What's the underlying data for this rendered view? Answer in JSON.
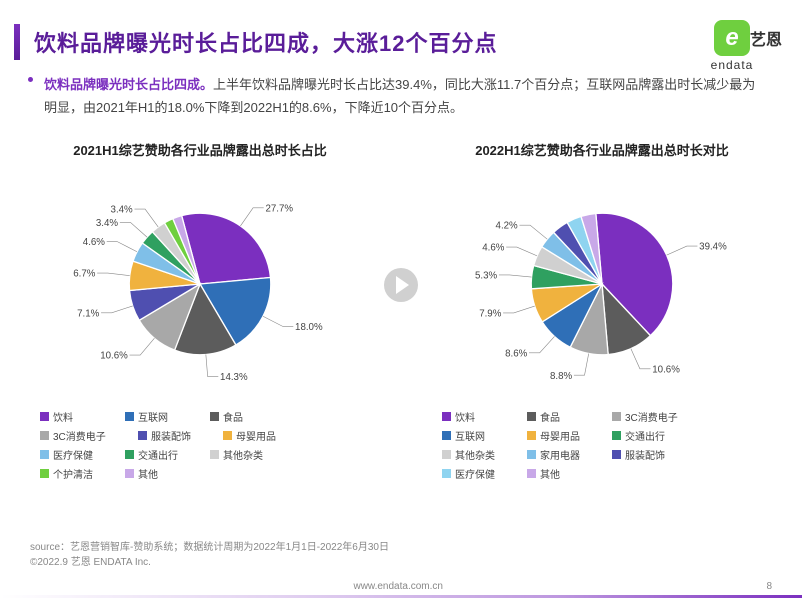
{
  "title": "饮料品牌曝光时长占比四成，大涨12个百分点",
  "title_color": "#5a1d99",
  "accent_color": "#7b2fbf",
  "logo": {
    "cn": "艺恩",
    "en": "endata",
    "bg": "#6fcf3f"
  },
  "subtitle_head": "饮料品牌曝光时长占比四成。",
  "subtitle_body": "上半年饮料品牌曝光时长占比达39.4%，同比大涨11.7个百分点；互联网品牌露出时长减少最为明显，由2021年H1的18.0%下降到2022H1的8.6%，下降近10个百分点。",
  "chart_left": {
    "title": "2021H1综艺赞助各行业品牌露出总时长占比",
    "type": "pie",
    "background_color": "#ffffff",
    "label_fontsize": 11,
    "start_angle_deg": -15,
    "slices": [
      {
        "name": "饮料",
        "value": 27.7,
        "color": "#7b2fbf",
        "label": "27.7%"
      },
      {
        "name": "互联网",
        "value": 18.0,
        "color": "#2f6fb7",
        "label": "18.0%"
      },
      {
        "name": "食品",
        "value": 14.3,
        "color": "#5c5c5c",
        "label": "14.3%"
      },
      {
        "name": "3C消费电子",
        "value": 10.6,
        "color": "#a8a8a8",
        "label": "10.6%"
      },
      {
        "name": "服装配饰",
        "value": 7.1,
        "color": "#4f4fb0",
        "label": "7.1%"
      },
      {
        "name": "母婴用品",
        "value": 6.7,
        "color": "#f0b23e",
        "label": "6.7%"
      },
      {
        "name": "医疗保健",
        "value": 4.6,
        "color": "#7fbfe8",
        "label": "4.6%"
      },
      {
        "name": "交通出行",
        "value": 3.4,
        "color": "#2fa060",
        "label": "3.4%"
      },
      {
        "name": "其他杂类",
        "value": 3.4,
        "color": "#d0d0d0",
        "label": "3.4%"
      },
      {
        "name": "个护清洁",
        "value": 2.1,
        "color": "#6fcf3f",
        "label": ""
      },
      {
        "name": "其他",
        "value": 2.1,
        "color": "#c8a8e8",
        "label": ""
      }
    ],
    "legend": [
      "饮料",
      "互联网",
      "食品",
      "3C消费电子",
      "服装配饰",
      "母婴用品",
      "医疗保健",
      "交通出行",
      "其他杂类",
      "个护清洁",
      "其他"
    ],
    "legend_colors": [
      "#7b2fbf",
      "#2f6fb7",
      "#5c5c5c",
      "#a8a8a8",
      "#4f4fb0",
      "#f0b23e",
      "#7fbfe8",
      "#2fa060",
      "#d0d0d0",
      "#6fcf3f",
      "#c8a8e8"
    ]
  },
  "chart_right": {
    "title": "2022H1综艺赞助各行业品牌露出总时长对比",
    "type": "pie",
    "background_color": "#ffffff",
    "label_fontsize": 11,
    "start_angle_deg": -5,
    "slices": [
      {
        "name": "饮料",
        "value": 39.4,
        "color": "#7b2fbf",
        "label": "39.4%"
      },
      {
        "name": "食品",
        "value": 10.6,
        "color": "#5c5c5c",
        "label": "10.6%"
      },
      {
        "name": "3C消费电子",
        "value": 8.8,
        "color": "#a8a8a8",
        "label": "8.8%"
      },
      {
        "name": "互联网",
        "value": 8.6,
        "color": "#2f6fb7",
        "label": "8.6%"
      },
      {
        "name": "母婴用品",
        "value": 7.9,
        "color": "#f0b23e",
        "label": "7.9%"
      },
      {
        "name": "交通出行",
        "value": 5.3,
        "color": "#2fa060",
        "label": "5.3%"
      },
      {
        "name": "其他杂类",
        "value": 4.6,
        "color": "#d0d0d0",
        "label": "4.6%"
      },
      {
        "name": "家用电器",
        "value": 4.2,
        "color": "#7fbfe8",
        "label": "4.2%"
      },
      {
        "name": "服装配饰",
        "value": 3.8,
        "color": "#4f4fb0",
        "label": ""
      },
      {
        "name": "医疗保健",
        "value": 3.4,
        "color": "#8fd4f0",
        "label": ""
      },
      {
        "name": "其他",
        "value": 3.4,
        "color": "#c8a8e8",
        "label": ""
      }
    ],
    "legend": [
      "饮料",
      "食品",
      "3C消费电子",
      "互联网",
      "母婴用品",
      "交通出行",
      "其他杂类",
      "家用电器",
      "服装配饰",
      "医疗保健",
      "其他"
    ],
    "legend_colors": [
      "#7b2fbf",
      "#5c5c5c",
      "#a8a8a8",
      "#2f6fb7",
      "#f0b23e",
      "#2fa060",
      "#d0d0d0",
      "#7fbfe8",
      "#4f4fb0",
      "#8fd4f0",
      "#c8a8e8"
    ]
  },
  "source_line1": "source：艺恩营销智库-赞助系统；数据统计周期为2022年1月1日-2022年6月30日",
  "source_line2": "©2022.9 艺恩 ENDATA Inc.",
  "footer_url": "www.endata.com.cn",
  "page_number": "8"
}
